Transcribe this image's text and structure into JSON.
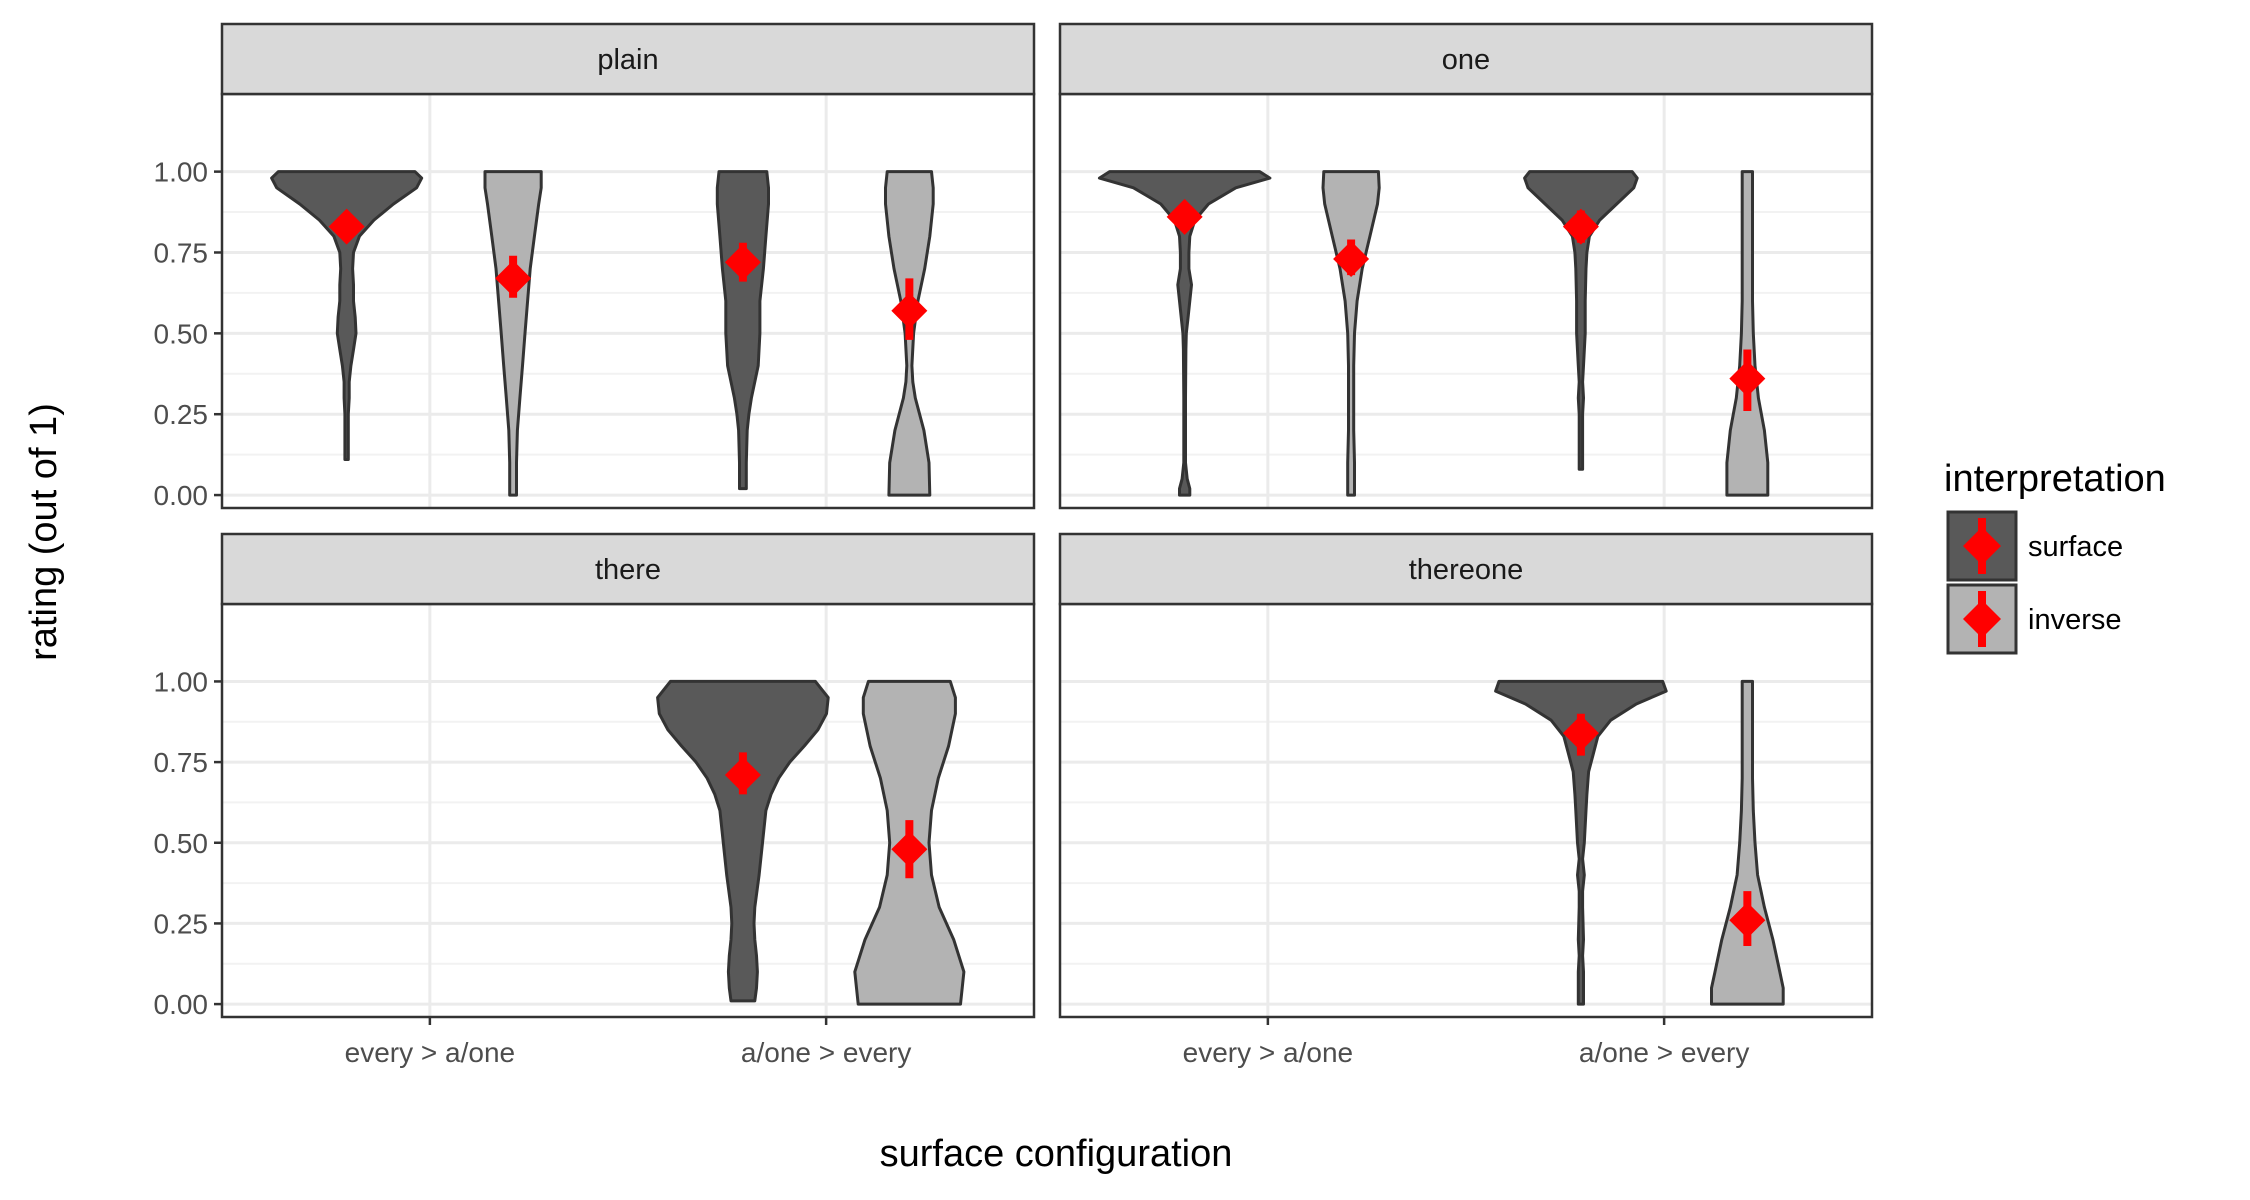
{
  "chart_data": {
    "type": "violin",
    "xlabel": "surface configuration",
    "ylabel": "rating (out of 1)",
    "x_categories": [
      "every > a/one",
      "a/one > every"
    ],
    "ylim": [
      -0.04,
      1.24
    ],
    "yticks": [
      "0.00",
      "0.25",
      "0.50",
      "0.75",
      "1.00"
    ],
    "ytick_values": [
      0,
      0.25,
      0.5,
      0.75,
      1.0
    ],
    "legend": {
      "title": "interpretation",
      "position": "right",
      "entries": [
        {
          "label": "surface",
          "fill": "#595959"
        },
        {
          "label": "inverse",
          "fill": "#b3b3b3"
        }
      ]
    },
    "colors": {
      "surface": "#595959",
      "inverse": "#b3b3b3",
      "mean": "#ff0000",
      "strip": "#d9d9d9",
      "grid": "#ebebeb"
    },
    "panels": [
      {
        "name": "plain",
        "violins": [
          {
            "category": "every > a/one",
            "interpretation": "surface",
            "mean": 0.83,
            "ci": [
              0.79,
              0.87
            ],
            "shape": [
              [
                1.0,
                0.8
              ],
              [
                0.98,
                0.88
              ],
              [
                0.95,
                0.82
              ],
              [
                0.9,
                0.55
              ],
              [
                0.85,
                0.32
              ],
              [
                0.8,
                0.15
              ],
              [
                0.75,
                0.08
              ],
              [
                0.7,
                0.07
              ],
              [
                0.65,
                0.08
              ],
              [
                0.6,
                0.08
              ],
              [
                0.55,
                0.1
              ],
              [
                0.5,
                0.11
              ],
              [
                0.45,
                0.08
              ],
              [
                0.4,
                0.05
              ],
              [
                0.35,
                0.03
              ],
              [
                0.3,
                0.03
              ],
              [
                0.25,
                0.02
              ],
              [
                0.2,
                0.02
              ],
              [
                0.15,
                0.02
              ],
              [
                0.11,
                0.02
              ]
            ]
          },
          {
            "category": "every > a/one",
            "interpretation": "inverse",
            "mean": 0.67,
            "ci": [
              0.61,
              0.74
            ],
            "shape": [
              [
                1.0,
                0.33
              ],
              [
                0.95,
                0.33
              ],
              [
                0.9,
                0.3
              ],
              [
                0.8,
                0.25
              ],
              [
                0.7,
                0.2
              ],
              [
                0.6,
                0.17
              ],
              [
                0.5,
                0.14
              ],
              [
                0.4,
                0.11
              ],
              [
                0.3,
                0.08
              ],
              [
                0.2,
                0.05
              ],
              [
                0.1,
                0.04
              ],
              [
                0.0,
                0.04
              ]
            ]
          },
          {
            "category": "a/one > every",
            "interpretation": "surface",
            "mean": 0.72,
            "ci": [
              0.66,
              0.78
            ],
            "shape": [
              [
                1.0,
                0.28
              ],
              [
                0.95,
                0.3
              ],
              [
                0.9,
                0.3
              ],
              [
                0.8,
                0.27
              ],
              [
                0.7,
                0.24
              ],
              [
                0.6,
                0.2
              ],
              [
                0.5,
                0.2
              ],
              [
                0.4,
                0.18
              ],
              [
                0.3,
                0.1
              ],
              [
                0.25,
                0.07
              ],
              [
                0.2,
                0.05
              ],
              [
                0.1,
                0.04
              ],
              [
                0.02,
                0.04
              ]
            ]
          },
          {
            "category": "a/one > every",
            "interpretation": "inverse",
            "mean": 0.57,
            "ci": [
              0.48,
              0.67
            ],
            "shape": [
              [
                1.0,
                0.26
              ],
              [
                0.95,
                0.28
              ],
              [
                0.9,
                0.28
              ],
              [
                0.8,
                0.24
              ],
              [
                0.7,
                0.18
              ],
              [
                0.6,
                0.1
              ],
              [
                0.5,
                0.05
              ],
              [
                0.4,
                0.03
              ],
              [
                0.35,
                0.04
              ],
              [
                0.3,
                0.07
              ],
              [
                0.2,
                0.17
              ],
              [
                0.1,
                0.23
              ],
              [
                0.0,
                0.24
              ]
            ]
          }
        ]
      },
      {
        "name": "one",
        "violins": [
          {
            "category": "every > a/one",
            "interpretation": "surface",
            "mean": 0.86,
            "ci": [
              0.82,
              0.9
            ],
            "shape": [
              [
                1.0,
                0.88
              ],
              [
                0.98,
                1.0
              ],
              [
                0.95,
                0.6
              ],
              [
                0.9,
                0.28
              ],
              [
                0.85,
                0.12
              ],
              [
                0.8,
                0.06
              ],
              [
                0.75,
                0.05
              ],
              [
                0.7,
                0.05
              ],
              [
                0.65,
                0.08
              ],
              [
                0.6,
                0.06
              ],
              [
                0.55,
                0.04
              ],
              [
                0.5,
                0.02
              ],
              [
                0.45,
                0.015
              ],
              [
                0.3,
                0.01
              ],
              [
                0.1,
                0.01
              ],
              [
                0.05,
                0.03
              ],
              [
                0.02,
                0.06
              ],
              [
                0.0,
                0.06
              ]
            ]
          },
          {
            "category": "every > a/one",
            "interpretation": "inverse",
            "mean": 0.73,
            "ci": [
              0.68,
              0.79
            ],
            "shape": [
              [
                1.0,
                0.32
              ],
              [
                0.95,
                0.33
              ],
              [
                0.9,
                0.31
              ],
              [
                0.8,
                0.22
              ],
              [
                0.7,
                0.13
              ],
              [
                0.6,
                0.07
              ],
              [
                0.5,
                0.04
              ],
              [
                0.4,
                0.03
              ],
              [
                0.3,
                0.03
              ],
              [
                0.2,
                0.03
              ],
              [
                0.1,
                0.04
              ],
              [
                0.0,
                0.04
              ]
            ]
          },
          {
            "category": "a/one > every",
            "interpretation": "surface",
            "mean": 0.83,
            "ci": [
              0.78,
              0.88
            ],
            "shape": [
              [
                1.0,
                0.6
              ],
              [
                0.98,
                0.66
              ],
              [
                0.95,
                0.62
              ],
              [
                0.9,
                0.42
              ],
              [
                0.85,
                0.22
              ],
              [
                0.8,
                0.1
              ],
              [
                0.75,
                0.07
              ],
              [
                0.7,
                0.06
              ],
              [
                0.6,
                0.05
              ],
              [
                0.5,
                0.05
              ],
              [
                0.4,
                0.03
              ],
              [
                0.35,
                0.02
              ],
              [
                0.3,
                0.03
              ],
              [
                0.25,
                0.02
              ],
              [
                0.2,
                0.02
              ],
              [
                0.1,
                0.02
              ],
              [
                0.08,
                0.02
              ]
            ]
          },
          {
            "category": "a/one > every",
            "interpretation": "inverse",
            "mean": 0.36,
            "ci": [
              0.26,
              0.45
            ],
            "shape": [
              [
                1.0,
                0.06
              ],
              [
                0.9,
                0.06
              ],
              [
                0.8,
                0.06
              ],
              [
                0.7,
                0.06
              ],
              [
                0.6,
                0.06
              ],
              [
                0.5,
                0.07
              ],
              [
                0.4,
                0.09
              ],
              [
                0.3,
                0.13
              ],
              [
                0.2,
                0.2
              ],
              [
                0.1,
                0.24
              ],
              [
                0.0,
                0.24
              ]
            ]
          }
        ]
      },
      {
        "name": "there",
        "violins": [
          {
            "category": "a/one > every",
            "interpretation": "surface",
            "mean": 0.71,
            "ci": [
              0.65,
              0.78
            ],
            "shape": [
              [
                1.0,
                0.85
              ],
              [
                0.95,
                1.0
              ],
              [
                0.9,
                0.98
              ],
              [
                0.85,
                0.88
              ],
              [
                0.8,
                0.72
              ],
              [
                0.75,
                0.55
              ],
              [
                0.7,
                0.42
              ],
              [
                0.65,
                0.33
              ],
              [
                0.6,
                0.27
              ],
              [
                0.5,
                0.23
              ],
              [
                0.4,
                0.19
              ],
              [
                0.3,
                0.14
              ],
              [
                0.25,
                0.13
              ],
              [
                0.2,
                0.14
              ],
              [
                0.15,
                0.16
              ],
              [
                0.1,
                0.17
              ],
              [
                0.05,
                0.16
              ],
              [
                0.01,
                0.14
              ]
            ]
          },
          {
            "category": "a/one > every",
            "interpretation": "inverse",
            "mean": 0.48,
            "ci": [
              0.39,
              0.57
            ],
            "shape": [
              [
                1.0,
                0.48
              ],
              [
                0.95,
                0.54
              ],
              [
                0.9,
                0.54
              ],
              [
                0.8,
                0.46
              ],
              [
                0.7,
                0.34
              ],
              [
                0.6,
                0.26
              ],
              [
                0.5,
                0.23
              ],
              [
                0.4,
                0.26
              ],
              [
                0.3,
                0.35
              ],
              [
                0.2,
                0.52
              ],
              [
                0.1,
                0.64
              ],
              [
                0.05,
                0.62
              ],
              [
                0.0,
                0.6
              ]
            ]
          }
        ]
      },
      {
        "name": "thereone",
        "violins": [
          {
            "category": "a/one > every",
            "interpretation": "surface",
            "mean": 0.84,
            "ci": [
              0.77,
              0.9
            ],
            "shape": [
              [
                1.0,
                0.96
              ],
              [
                0.97,
                1.0
              ],
              [
                0.93,
                0.65
              ],
              [
                0.88,
                0.35
              ],
              [
                0.83,
                0.2
              ],
              [
                0.78,
                0.15
              ],
              [
                0.72,
                0.09
              ],
              [
                0.65,
                0.07
              ],
              [
                0.6,
                0.06
              ],
              [
                0.5,
                0.04
              ],
              [
                0.45,
                0.02
              ],
              [
                0.4,
                0.04
              ],
              [
                0.35,
                0.02
              ],
              [
                0.3,
                0.02
              ],
              [
                0.2,
                0.03
              ],
              [
                0.15,
                0.02
              ],
              [
                0.1,
                0.03
              ],
              [
                0.05,
                0.03
              ],
              [
                0.0,
                0.03
              ]
            ]
          },
          {
            "category": "a/one > every",
            "interpretation": "inverse",
            "mean": 0.26,
            "ci": [
              0.18,
              0.35
            ],
            "shape": [
              [
                1.0,
                0.06
              ],
              [
                0.9,
                0.06
              ],
              [
                0.8,
                0.06
              ],
              [
                0.7,
                0.06
              ],
              [
                0.6,
                0.07
              ],
              [
                0.5,
                0.09
              ],
              [
                0.4,
                0.12
              ],
              [
                0.3,
                0.2
              ],
              [
                0.2,
                0.3
              ],
              [
                0.1,
                0.38
              ],
              [
                0.05,
                0.42
              ],
              [
                0.0,
                0.42
              ]
            ]
          }
        ]
      }
    ]
  }
}
